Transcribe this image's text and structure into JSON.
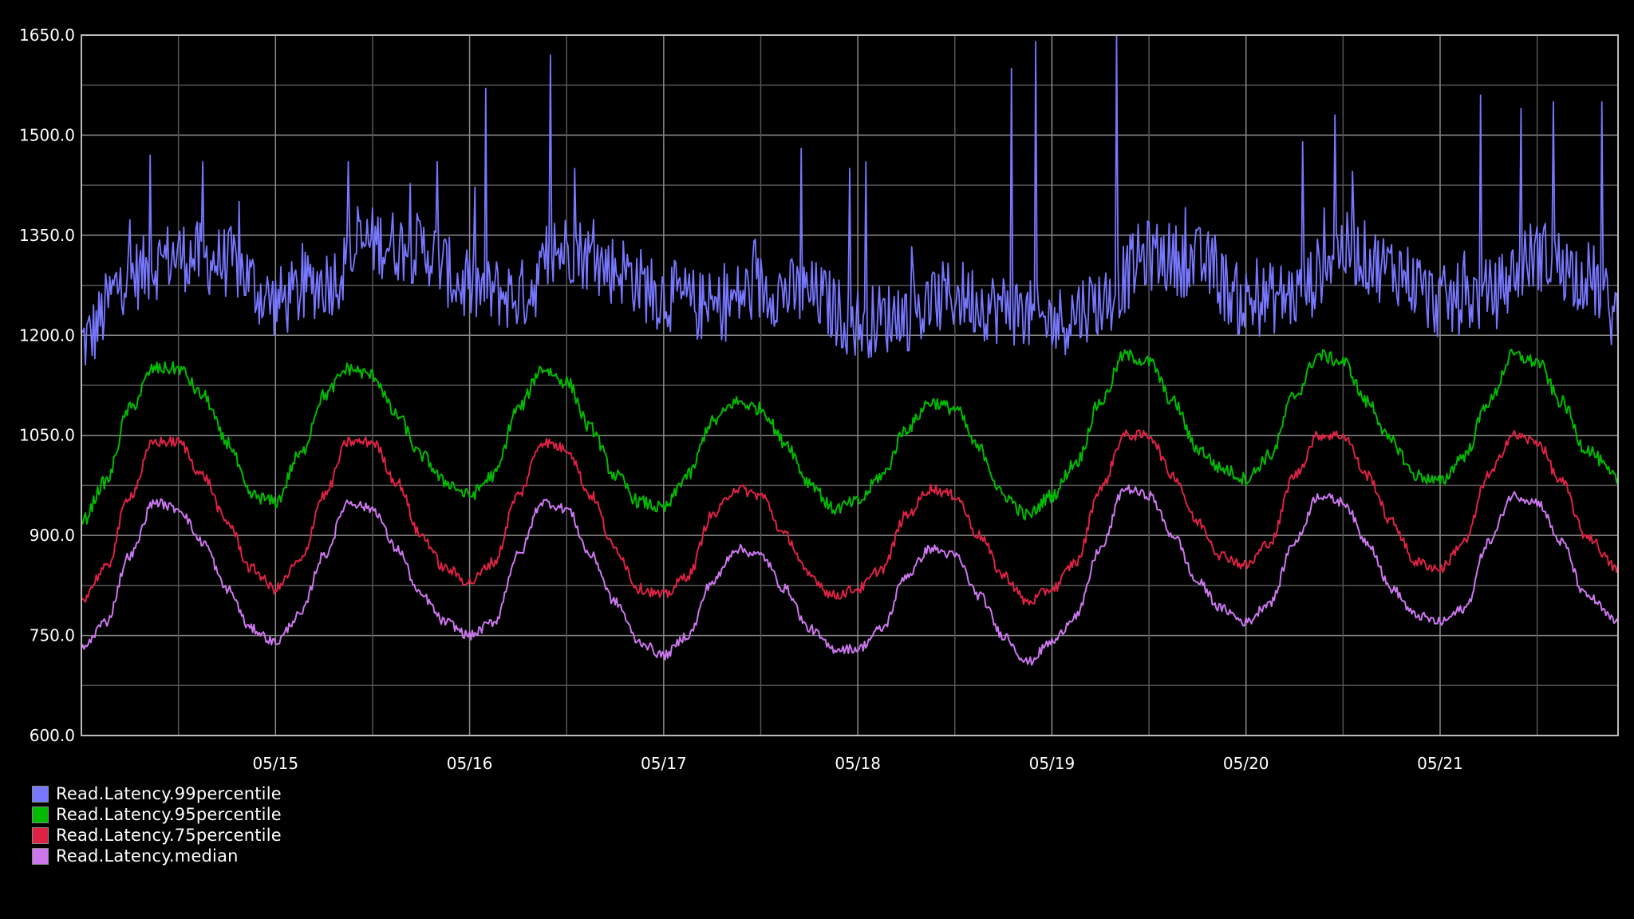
{
  "chart_data": {
    "type": "line",
    "title": "",
    "xlabel": "",
    "ylabel": "",
    "ylim": [
      600,
      1650
    ],
    "x_range": [
      "05/14 00:00",
      "05/21 22:00"
    ],
    "y_ticks": [
      "600.0",
      "750.0",
      "900.0",
      "1050.0",
      "1200.0",
      "1350.0",
      "1500.0",
      "1650.0"
    ],
    "x_tick_labels": [
      "05/15",
      "05/16",
      "05/17",
      "05/18",
      "05/19",
      "05/20",
      "05/21"
    ],
    "grid": true,
    "legend_position": "bottom-left",
    "background": "#000000",
    "series": [
      {
        "name": "Read.Latency.99percentile",
        "color": "#7777ff",
        "x": [
          "05/14 00:00",
          "05/14 06:00",
          "05/14 12:00",
          "05/14 18:00",
          "05/15 00:00",
          "05/15 06:00",
          "05/15 12:00",
          "05/15 18:00",
          "05/16 00:00",
          "05/16 06:00",
          "05/16 12:00",
          "05/16 18:00",
          "05/17 00:00",
          "05/17 06:00",
          "05/17 12:00",
          "05/17 18:00",
          "05/18 00:00",
          "05/18 06:00",
          "05/18 12:00",
          "05/18 18:00",
          "05/19 00:00",
          "05/19 06:00",
          "05/19 12:00",
          "05/19 18:00",
          "05/20 00:00",
          "05/20 06:00",
          "05/20 12:00",
          "05/20 18:00",
          "05/21 00:00",
          "05/21 06:00",
          "05/21 12:00",
          "05/21 18:00",
          "05/21 22:00"
        ],
        "values": [
          1190,
          1290,
          1320,
          1310,
          1250,
          1280,
          1340,
          1330,
          1270,
          1260,
          1330,
          1300,
          1260,
          1240,
          1270,
          1260,
          1220,
          1230,
          1260,
          1240,
          1220,
          1250,
          1320,
          1310,
          1250,
          1260,
          1330,
          1300,
          1250,
          1260,
          1320,
          1290,
          1230
        ],
        "peaks": [
          {
            "x": "05/14 08:30",
            "value": 1470
          },
          {
            "x": "05/14 15:00",
            "value": 1460
          },
          {
            "x": "05/15 09:00",
            "value": 1460
          },
          {
            "x": "05/15 20:00",
            "value": 1460
          },
          {
            "x": "05/16 02:00",
            "value": 1570
          },
          {
            "x": "05/16 10:00",
            "value": 1620
          },
          {
            "x": "05/16 13:00",
            "value": 1450
          },
          {
            "x": "05/17 17:00",
            "value": 1480
          },
          {
            "x": "05/17 23:00",
            "value": 1450
          },
          {
            "x": "05/18 01:00",
            "value": 1460
          },
          {
            "x": "05/18 19:00",
            "value": 1600
          },
          {
            "x": "05/18 22:00",
            "value": 1640
          },
          {
            "x": "05/19 08:00",
            "value": 1650
          },
          {
            "x": "05/20 07:00",
            "value": 1490
          },
          {
            "x": "05/20 11:00",
            "value": 1530
          },
          {
            "x": "05/21 05:00",
            "value": 1560
          },
          {
            "x": "05/21 10:00",
            "value": 1540
          },
          {
            "x": "05/21 14:00",
            "value": 1550
          },
          {
            "x": "05/21 20:00",
            "value": 1550
          }
        ]
      },
      {
        "name": "Read.Latency.95percentile",
        "color": "#00bb00",
        "x": [
          "05/14 00:00",
          "05/14 03:00",
          "05/14 06:00",
          "05/14 09:00",
          "05/14 12:00",
          "05/14 15:00",
          "05/14 18:00",
          "05/14 21:00",
          "05/15 00:00",
          "05/15 03:00",
          "05/15 06:00",
          "05/15 09:00",
          "05/15 12:00",
          "05/15 15:00",
          "05/15 18:00",
          "05/15 21:00",
          "05/16 00:00",
          "05/16 03:00",
          "05/16 06:00",
          "05/16 09:00",
          "05/16 12:00",
          "05/16 15:00",
          "05/16 18:00",
          "05/16 21:00",
          "05/17 00:00",
          "05/17 03:00",
          "05/17 06:00",
          "05/17 09:00",
          "05/17 12:00",
          "05/17 15:00",
          "05/17 18:00",
          "05/17 21:00",
          "05/18 00:00",
          "05/18 03:00",
          "05/18 06:00",
          "05/18 09:00",
          "05/18 12:00",
          "05/18 15:00",
          "05/18 18:00",
          "05/18 21:00",
          "05/19 00:00",
          "05/19 03:00",
          "05/19 06:00",
          "05/19 09:00",
          "05/19 12:00",
          "05/19 15:00",
          "05/19 18:00",
          "05/19 21:00",
          "05/20 00:00",
          "05/20 03:00",
          "05/20 06:00",
          "05/20 09:00",
          "05/20 12:00",
          "05/20 15:00",
          "05/20 18:00",
          "05/20 21:00",
          "05/21 00:00",
          "05/21 03:00",
          "05/21 06:00",
          "05/21 09:00",
          "05/21 12:00",
          "05/21 15:00",
          "05/21 18:00",
          "05/21 22:00"
        ],
        "values": [
          920,
          980,
          1090,
          1150,
          1150,
          1110,
          1040,
          960,
          950,
          1020,
          1110,
          1150,
          1140,
          1080,
          1020,
          980,
          960,
          990,
          1090,
          1150,
          1130,
          1060,
          990,
          950,
          940,
          990,
          1070,
          1100,
          1090,
          1040,
          980,
          940,
          950,
          990,
          1060,
          1100,
          1090,
          1030,
          960,
          930,
          960,
          1010,
          1100,
          1170,
          1160,
          1100,
          1030,
          1000,
          985,
          1020,
          1110,
          1170,
          1160,
          1100,
          1040,
          990,
          980,
          1020,
          1100,
          1170,
          1160,
          1100,
          1030,
          985
        ]
      },
      {
        "name": "Read.Latency.75percentile",
        "color": "#dd2244",
        "x": [
          "05/14 00:00",
          "05/14 03:00",
          "05/14 06:00",
          "05/14 09:00",
          "05/14 12:00",
          "05/14 15:00",
          "05/14 18:00",
          "05/14 21:00",
          "05/15 00:00",
          "05/15 03:00",
          "05/15 06:00",
          "05/15 09:00",
          "05/15 12:00",
          "05/15 15:00",
          "05/15 18:00",
          "05/15 21:00",
          "05/16 00:00",
          "05/16 03:00",
          "05/16 06:00",
          "05/16 09:00",
          "05/16 12:00",
          "05/16 15:00",
          "05/16 18:00",
          "05/16 21:00",
          "05/17 00:00",
          "05/17 03:00",
          "05/17 06:00",
          "05/17 09:00",
          "05/17 12:00",
          "05/17 15:00",
          "05/17 18:00",
          "05/17 21:00",
          "05/18 00:00",
          "05/18 03:00",
          "05/18 06:00",
          "05/18 09:00",
          "05/18 12:00",
          "05/18 15:00",
          "05/18 18:00",
          "05/18 21:00",
          "05/19 00:00",
          "05/19 03:00",
          "05/19 06:00",
          "05/19 09:00",
          "05/19 12:00",
          "05/19 15:00",
          "05/19 18:00",
          "05/19 21:00",
          "05/20 00:00",
          "05/20 03:00",
          "05/20 06:00",
          "05/20 09:00",
          "05/20 12:00",
          "05/20 15:00",
          "05/20 18:00",
          "05/20 21:00",
          "05/21 00:00",
          "05/21 03:00",
          "05/21 06:00",
          "05/21 09:00",
          "05/21 12:00",
          "05/21 15:00",
          "05/21 18:00",
          "05/21 22:00"
        ],
        "values": [
          805,
          850,
          960,
          1040,
          1040,
          990,
          920,
          850,
          820,
          860,
          960,
          1040,
          1040,
          980,
          900,
          850,
          830,
          860,
          960,
          1040,
          1030,
          960,
          880,
          820,
          810,
          840,
          930,
          970,
          960,
          900,
          840,
          810,
          820,
          850,
          930,
          970,
          960,
          900,
          840,
          800,
          820,
          860,
          970,
          1050,
          1050,
          990,
          920,
          870,
          855,
          890,
          990,
          1050,
          1050,
          990,
          920,
          860,
          850,
          890,
          990,
          1050,
          1040,
          980,
          900,
          850
        ]
      },
      {
        "name": "Read.Latency.median",
        "color": "#cc77ee",
        "x": [
          "05/14 00:00",
          "05/14 03:00",
          "05/14 06:00",
          "05/14 09:00",
          "05/14 12:00",
          "05/14 15:00",
          "05/14 18:00",
          "05/14 21:00",
          "05/15 00:00",
          "05/15 03:00",
          "05/15 06:00",
          "05/15 09:00",
          "05/15 12:00",
          "05/15 15:00",
          "05/15 18:00",
          "05/15 21:00",
          "05/16 00:00",
          "05/16 03:00",
          "05/16 06:00",
          "05/16 09:00",
          "05/16 12:00",
          "05/16 15:00",
          "05/16 18:00",
          "05/16 21:00",
          "05/17 00:00",
          "05/17 03:00",
          "05/17 06:00",
          "05/17 09:00",
          "05/17 12:00",
          "05/17 15:00",
          "05/17 18:00",
          "05/17 21:00",
          "05/18 00:00",
          "05/18 03:00",
          "05/18 06:00",
          "05/18 09:00",
          "05/18 12:00",
          "05/18 15:00",
          "05/18 18:00",
          "05/18 21:00",
          "05/19 00:00",
          "05/19 03:00",
          "05/19 06:00",
          "05/19 09:00",
          "05/19 12:00",
          "05/19 15:00",
          "05/19 18:00",
          "05/19 21:00",
          "05/20 00:00",
          "05/20 03:00",
          "05/20 06:00",
          "05/20 09:00",
          "05/20 12:00",
          "05/20 15:00",
          "05/20 18:00",
          "05/20 21:00",
          "05/21 00:00",
          "05/21 03:00",
          "05/21 06:00",
          "05/21 09:00",
          "05/21 12:00",
          "05/21 15:00",
          "05/21 18:00",
          "05/21 22:00"
        ],
        "values": [
          730,
          770,
          870,
          950,
          940,
          890,
          820,
          760,
          740,
          780,
          870,
          950,
          940,
          880,
          810,
          770,
          750,
          770,
          870,
          950,
          940,
          870,
          800,
          740,
          720,
          750,
          830,
          880,
          870,
          820,
          760,
          730,
          730,
          760,
          840,
          880,
          870,
          810,
          750,
          710,
          740,
          780,
          880,
          970,
          960,
          900,
          830,
          790,
          770,
          800,
          890,
          960,
          950,
          890,
          820,
          780,
          770,
          790,
          890,
          960,
          950,
          890,
          810,
          770
        ]
      }
    ]
  }
}
